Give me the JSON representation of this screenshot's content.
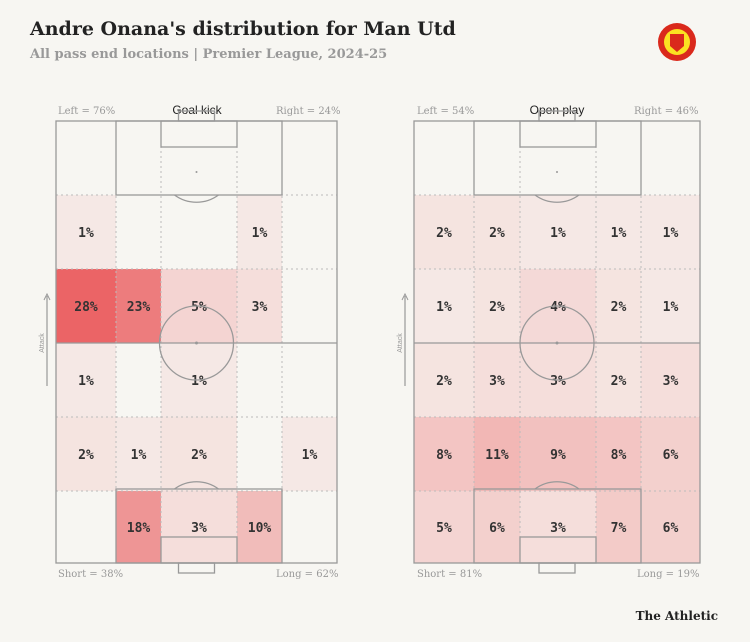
{
  "title": "Andre Onana's distribution for Man Utd",
  "subtitle": "All pass end locations | Premier League, 2024-25",
  "brand": "The Athletic",
  "attack_label": "Attack",
  "colors": {
    "heat": "#e8474a",
    "line": "#999999",
    "background": "#f7f6f2"
  },
  "chart_data": [
    {
      "type": "heatmap",
      "title": "Goal kick",
      "left": "Left = 76%",
      "right": "Right = 24%",
      "short": "Short = 38%",
      "long": "Long = 62%",
      "rows": [
        [
          "",
          "",
          "",
          "",
          ""
        ],
        [
          "1%",
          "",
          "",
          "1%",
          ""
        ],
        [
          "28%",
          "23%",
          "5%",
          "3%",
          ""
        ],
        [
          "1%",
          "",
          "1%",
          "",
          ""
        ],
        [
          "2%",
          "1%",
          "2%",
          "",
          "1%"
        ],
        [
          "",
          "18%",
          "3%",
          "10%",
          ""
        ]
      ]
    },
    {
      "type": "heatmap",
      "title": "Open play",
      "left": "Left = 54%",
      "right": "Right = 46%",
      "short": "Short = 81%",
      "long": "Long = 19%",
      "rows": [
        [
          "",
          "",
          "",
          "",
          ""
        ],
        [
          "2%",
          "2%",
          "1%",
          "1%",
          "1%"
        ],
        [
          "1%",
          "2%",
          "4%",
          "2%",
          "1%"
        ],
        [
          "2%",
          "3%",
          "3%",
          "2%",
          "3%"
        ],
        [
          "8%",
          "11%",
          "9%",
          "8%",
          "6%"
        ],
        [
          "5%",
          "6%",
          "3%",
          "7%",
          "6%"
        ]
      ]
    }
  ]
}
